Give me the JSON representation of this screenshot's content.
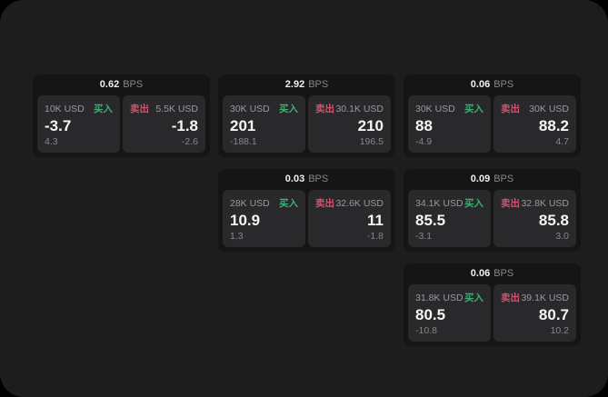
{
  "labels": {
    "bps": "BPS",
    "buy": "买入",
    "sell": "卖出"
  },
  "colors": {
    "page_bg": "#000000",
    "panel_bg": "#1d1d1e",
    "card_bg": "#151516",
    "tile_bg": "#29292b",
    "muted_text": "#9a9a9d",
    "value_text": "#f5f5f5",
    "buy_green": "#3fae75",
    "sell_red": "#d0536f"
  },
  "cards": [
    {
      "bps": "0.62",
      "col": 1,
      "row": 1,
      "buy": {
        "size": "10K USD",
        "price": "-3.7",
        "delta": "4.3"
      },
      "sell": {
        "size": "5.5K USD",
        "price": "-1.8",
        "delta": "-2.6"
      }
    },
    {
      "bps": "2.92",
      "col": 2,
      "row": 1,
      "buy": {
        "size": "30K USD",
        "price": "201",
        "delta": "-188.1"
      },
      "sell": {
        "size": "30.1K USD",
        "price": "210",
        "delta": "196.5"
      }
    },
    {
      "bps": "0.06",
      "col": 3,
      "row": 1,
      "buy": {
        "size": "30K USD",
        "price": "88",
        "delta": "-4.9"
      },
      "sell": {
        "size": "30K USD",
        "price": "88.2",
        "delta": "4.7"
      }
    },
    {
      "bps": "0.03",
      "col": 2,
      "row": 2,
      "buy": {
        "size": "28K USD",
        "price": "10.9",
        "delta": "1.3"
      },
      "sell": {
        "size": "32.6K USD",
        "price": "11",
        "delta": "-1.8"
      }
    },
    {
      "bps": "0.09",
      "col": 3,
      "row": 2,
      "buy": {
        "size": "34.1K USD",
        "price": "85.5",
        "delta": "-3.1"
      },
      "sell": {
        "size": "32.8K USD",
        "price": "85.8",
        "delta": "3.0"
      }
    },
    {
      "bps": "0.06",
      "col": 3,
      "row": 3,
      "buy": {
        "size": "31.8K USD",
        "price": "80.5",
        "delta": "-10.8"
      },
      "sell": {
        "size": "39.1K USD",
        "price": "80.7",
        "delta": "10.2"
      }
    }
  ]
}
